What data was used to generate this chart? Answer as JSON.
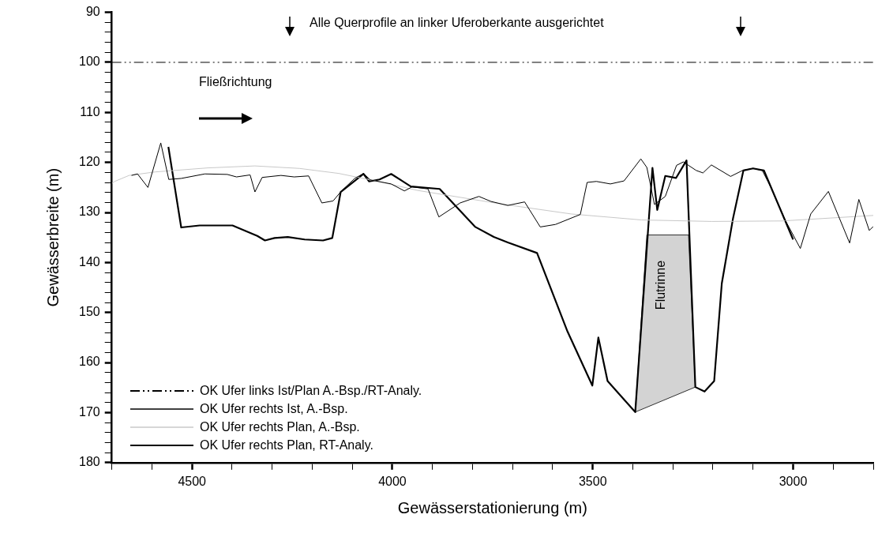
{
  "chart_data": {
    "type": "line",
    "xlabel": "Gewässerstationierung (m)",
    "ylabel": "Gewässerbreite (m)",
    "xlim": [
      4700,
      2800
    ],
    "ylim": [
      180,
      90
    ],
    "xticks": [
      {
        "value": 4700,
        "label": null
      },
      {
        "value": 4600,
        "label": null
      },
      4500,
      {
        "value": 4400,
        "label": null
      },
      {
        "value": 4300,
        "label": null
      },
      {
        "value": 4200,
        "label": null
      },
      {
        "value": 4100,
        "label": null
      },
      4000,
      {
        "value": 3900,
        "label": null
      },
      {
        "value": 3800,
        "label": null
      },
      {
        "value": 3700,
        "label": null
      },
      {
        "value": 3600,
        "label": null
      },
      3500,
      {
        "value": 3400,
        "label": null
      },
      {
        "value": 3300,
        "label": null
      },
      {
        "value": 3200,
        "label": null
      },
      {
        "value": 3100,
        "label": null
      },
      3000,
      {
        "value": 2900,
        "label": null
      },
      {
        "value": 2800,
        "label": null
      }
    ],
    "yticks": [
      90,
      {
        "value": 92,
        "label": null
      },
      {
        "value": 94,
        "label": null
      },
      {
        "value": 96,
        "label": null
      },
      {
        "value": 98,
        "label": null
      },
      100,
      {
        "value": 102,
        "label": null
      },
      {
        "value": 104,
        "label": null
      },
      {
        "value": 106,
        "label": null
      },
      {
        "value": 108,
        "label": null
      },
      110,
      {
        "value": 112,
        "label": null
      },
      {
        "value": 114,
        "label": null
      },
      {
        "value": 116,
        "label": null
      },
      {
        "value": 118,
        "label": null
      },
      120,
      {
        "value": 122,
        "label": null
      },
      {
        "value": 124,
        "label": null
      },
      {
        "value": 126,
        "label": null
      },
      {
        "value": 128,
        "label": null
      },
      130,
      {
        "value": 132,
        "label": null
      },
      {
        "value": 134,
        "label": null
      },
      {
        "value": 136,
        "label": null
      },
      {
        "value": 138,
        "label": null
      },
      140,
      {
        "value": 142,
        "label": null
      },
      {
        "value": 144,
        "label": null
      },
      {
        "value": 146,
        "label": null
      },
      {
        "value": 148,
        "label": null
      },
      150,
      {
        "value": 152,
        "label": null
      },
      {
        "value": 154,
        "label": null
      },
      {
        "value": 156,
        "label": null
      },
      {
        "value": 158,
        "label": null
      },
      160,
      {
        "value": 162,
        "label": null
      },
      {
        "value": 164,
        "label": null
      },
      {
        "value": 166,
        "label": null
      },
      {
        "value": 168,
        "label": null
      },
      170,
      {
        "value": 172,
        "label": null
      },
      {
        "value": 174,
        "label": null
      },
      {
        "value": 176,
        "label": null
      },
      {
        "value": 178,
        "label": null
      },
      180
    ],
    "grid": false,
    "legend": "bottom left",
    "marker": "none",
    "series": [
      {
        "type": "area",
        "color": "#d3d3d3",
        "x": [
          3394,
          3365,
          3261,
          3244,
          3394
        ],
        "values": [
          169.9,
          134.5,
          134.5,
          164.9,
          169.9
        ]
      },
      {
        "name": "OK Ufer links Ist/Plan A.-Bsp./RT-Analy.",
        "color": "#000000",
        "line_style": "dashed",
        "x": [
          4700,
          2800
        ],
        "values": [
          100,
          100
        ]
      },
      {
        "name": "OK Ufer rechts Ist, A.-Bsp.",
        "color": "#000000",
        "line_style": "solid",
        "x": [
          4651,
          4636,
          4610,
          4578,
          4558,
          4527,
          4468,
          4412,
          4389,
          4355,
          4343,
          4325,
          4278,
          4245,
          4209,
          4176,
          4148,
          4127,
          4094,
          4072,
          4055,
          4003,
          3970,
          3951,
          3911,
          3884,
          3831,
          3784,
          3754,
          3712,
          3670,
          3631,
          3593,
          3531,
          3514,
          3491,
          3456,
          3422,
          3380,
          3365,
          3346,
          3319,
          3291,
          3274,
          3242,
          3225,
          3204,
          3156,
          3126,
          3100,
          3077,
          3056,
          3020,
          2982,
          2956,
          2912,
          2859,
          2836,
          2810,
          2800
        ],
        "values": [
          122.6,
          122.3,
          125.0,
          116.1,
          123.4,
          123.2,
          122.3,
          122.4,
          122.9,
          122.5,
          125.9,
          123.0,
          122.6,
          122.9,
          122.7,
          128.1,
          127.7,
          125.7,
          123.2,
          122.2,
          123.5,
          124.3,
          125.7,
          124.9,
          125.3,
          130.9,
          128.1,
          126.8,
          127.8,
          128.6,
          127.9,
          132.9,
          132.4,
          130.4,
          124.0,
          123.8,
          124.3,
          123.7,
          119.3,
          121.0,
          128.4,
          126.8,
          120.6,
          119.9,
          121.6,
          122.1,
          120.5,
          122.8,
          121.6,
          121.2,
          121.6,
          124.9,
          131.5,
          137.2,
          130.3,
          125.8,
          136.1,
          127.4,
          133.6,
          132.8
        ]
      },
      {
        "name": "OK Ufer rechts Plan, A.-Bsp.",
        "color": "#c8c8c8",
        "line_style": "solid",
        "x": [
          4700,
          4693,
          4657,
          4592,
          4461,
          4343,
          4232,
          4134,
          4036,
          3937,
          3806,
          3729,
          3554,
          3378,
          3203,
          3027,
          2800
        ],
        "values": [
          124.2,
          123.8,
          122.6,
          121.9,
          121.1,
          120.7,
          121.2,
          122.2,
          123.8,
          125.6,
          127.3,
          128.3,
          130.3,
          131.5,
          131.8,
          131.7,
          130.6
        ]
      },
      {
        "name": "OK Ufer rechts Plan, RT-Analy.",
        "color": "#000000",
        "line_style": "solid",
        "x": [
          4559,
          4527,
          4481,
          4399,
          4337,
          4318,
          4294,
          4261,
          4219,
          4173,
          4150,
          4129,
          4072,
          4058,
          4032,
          4003,
          3954,
          3882,
          3793,
          3747,
          3712,
          3639,
          3563,
          3501,
          3486,
          3463,
          3394,
          3351,
          3339,
          3319,
          3292,
          3266,
          3244,
          3221,
          3197,
          3178,
          3150,
          3124,
          3100,
          3073,
          3000
        ],
        "values": [
          116.9,
          133.0,
          132.6,
          132.6,
          134.7,
          135.6,
          135.1,
          134.9,
          135.4,
          135.6,
          135.1,
          125.9,
          122.3,
          123.8,
          123.4,
          122.3,
          124.8,
          125.3,
          132.9,
          134.9,
          136.0,
          138.1,
          153.8,
          164.6,
          155.0,
          163.7,
          169.9,
          121.1,
          129.5,
          122.7,
          123.1,
          119.6,
          164.9,
          165.8,
          163.7,
          144.2,
          131.2,
          121.6,
          121.2,
          121.6,
          135.4
        ]
      }
    ],
    "annotations": [
      "Alle Querprofile an linker Uferoberkante ausgerichtet",
      "Fließrichtung",
      "Flutrinne"
    ]
  }
}
